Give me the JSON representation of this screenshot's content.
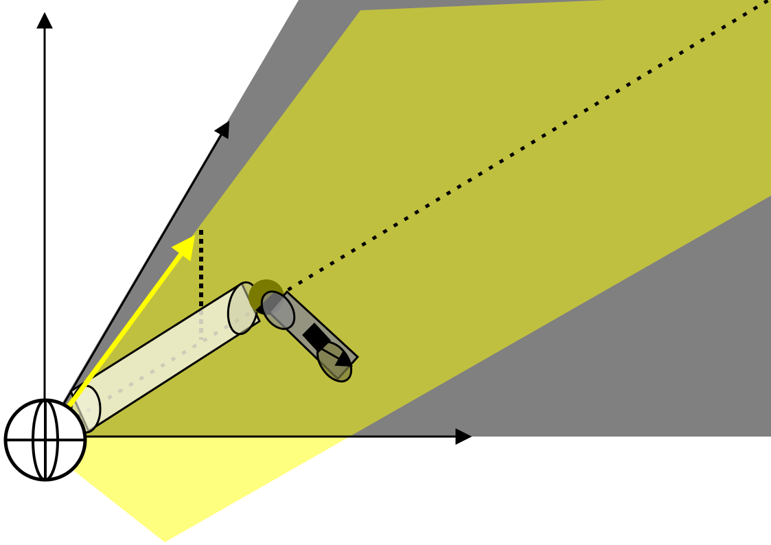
{
  "diagram": {
    "description_colors": {
      "background": "#ffffff",
      "gray_plane": "#808080",
      "yellow_plane": "#ffff00",
      "yellow_plane_opacity": 0.5,
      "yellow_arrow": "#ffff00",
      "link1_fill": "#f0f0d8",
      "link2_fill": "#8c8c8c",
      "joint_sphere": "#7a7a00",
      "stroke": "#000000"
    },
    "elements": {
      "base_sphere": "globe-icon",
      "vertical_axis": "arrow-up",
      "horizontal_axis": "arrow-right",
      "diagonal_axis": "arrow-diagonal",
      "normal_vector": "yellow-arrow",
      "projection_line": "dotted-vertical",
      "centerline": "dotted-diagonal",
      "link_1": "cylinder",
      "link_2": "cylinder",
      "joint": "sphere",
      "end_effector": "arrow-right-down"
    }
  }
}
